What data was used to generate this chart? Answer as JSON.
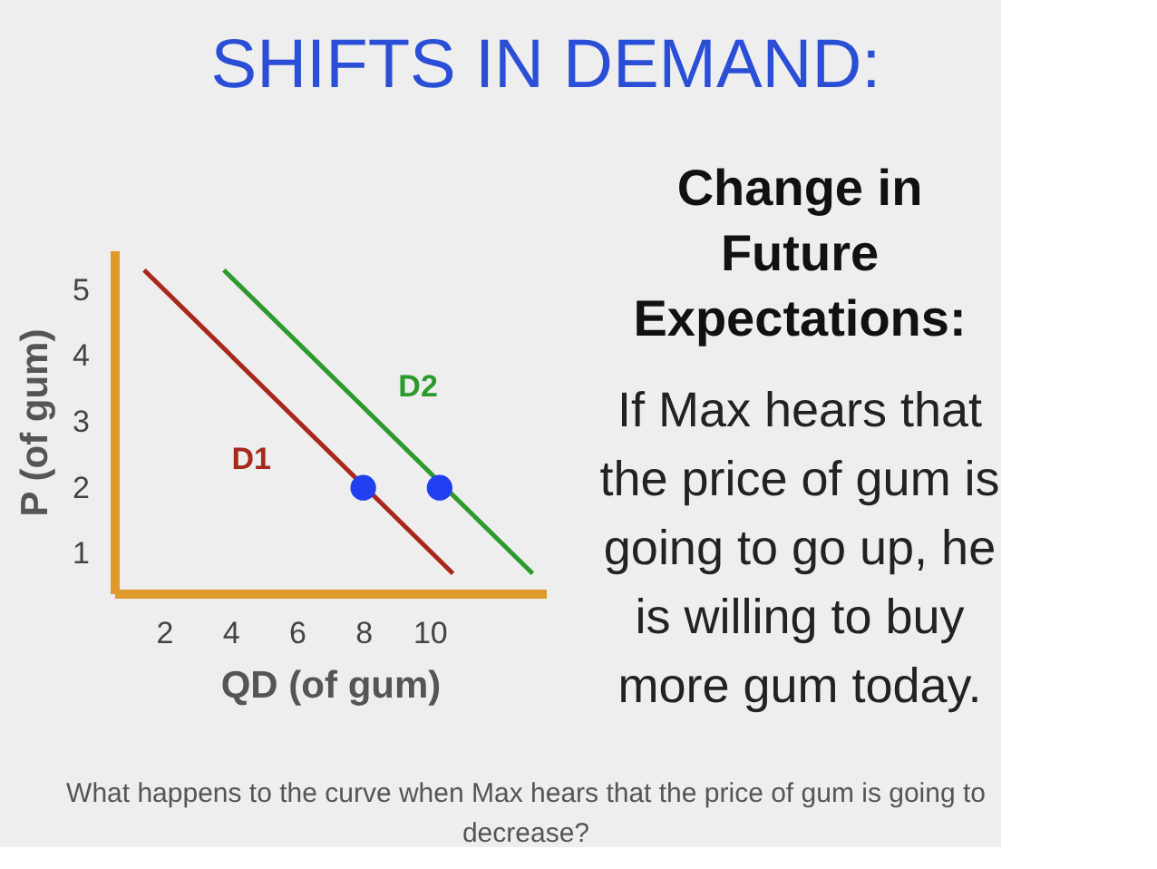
{
  "chart_data": {
    "type": "line",
    "title": "SHIFTS IN DEMAND:",
    "xlabel": "QD (of gum)",
    "ylabel": "P (of gum)",
    "series": [
      {
        "name": "D1",
        "color": "#a8281c",
        "x": [
          1.4,
          10.7
        ],
        "values": [
          5.3,
          0.7
        ]
      },
      {
        "name": "D2",
        "color": "#2c9a2c",
        "x": [
          3.8,
          13.1
        ],
        "values": [
          5.3,
          0.7
        ]
      },
      {
        "type": "scatter",
        "marker": "circle",
        "color": "#1f3ff0",
        "x": [
          8,
          10.3
        ],
        "values": [
          2,
          2
        ]
      }
    ],
    "xlim": [
      0.5,
      13.5
    ],
    "ylim": [
      0.4,
      5.6
    ],
    "xticks": [
      2,
      4,
      6,
      8,
      10
    ],
    "yticks": [
      1,
      2,
      3,
      4,
      5
    ],
    "grid": false,
    "legend": false,
    "marker": "none",
    "line_style": "solid",
    "annotations": [
      "Change in Future Expectations:",
      "If Max hears that the price of gum is going to go up, he is willing to buy more gum today.",
      "What happens to the curve when Max hears that the price of gum is going to decrease?"
    ]
  }
}
